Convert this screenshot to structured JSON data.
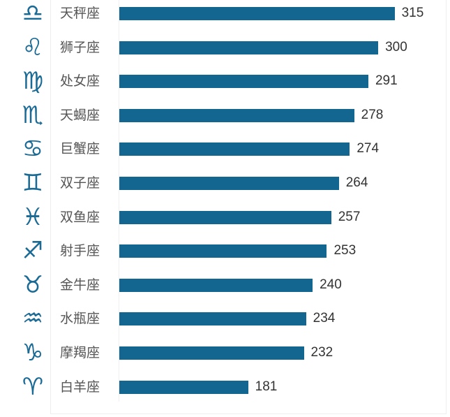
{
  "chart_data": {
    "type": "bar",
    "orientation": "horizontal",
    "categories": [
      "天秤座",
      "狮子座",
      "处女座",
      "天蝎座",
      "巨蟹座",
      "双子座",
      "双鱼座",
      "射手座",
      "金牛座",
      "水瓶座",
      "摩羯座",
      "白羊座"
    ],
    "icons": [
      "libra-icon",
      "leo-icon",
      "virgo-icon",
      "scorpio-icon",
      "cancer-icon",
      "gemini-icon",
      "pisces-icon",
      "sagittarius-icon",
      "taurus-icon",
      "aquarius-icon",
      "capricorn-icon",
      "aries-icon"
    ],
    "values": [
      315,
      300,
      291,
      278,
      274,
      264,
      257,
      253,
      240,
      234,
      232,
      181
    ],
    "xlim": [
      0,
      315
    ],
    "bar_color": "#13668f",
    "title": "",
    "xlabel": "",
    "ylabel": ""
  }
}
